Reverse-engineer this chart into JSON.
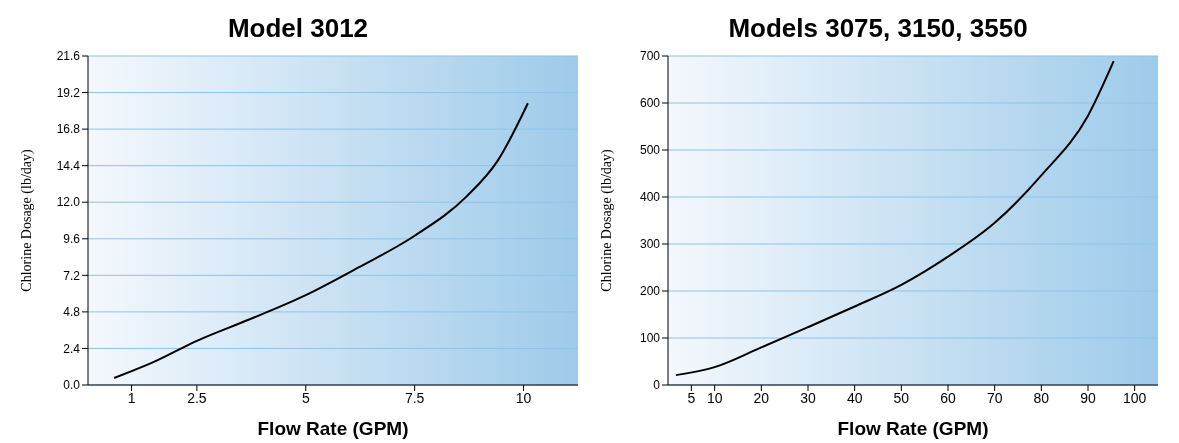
{
  "chart_data": [
    {
      "type": "line",
      "title": "Model 3012",
      "xlabel": "Flow Rate (GPM)",
      "ylabel": "Chlorine Dosage (lb/day)",
      "grid": "y",
      "marker": "none",
      "line_style": "solid",
      "xlim": [
        0,
        11.25
      ],
      "xticks": [
        1,
        2.5,
        5,
        7.5,
        10
      ],
      "ylim": [
        0,
        21.6
      ],
      "yticks": [
        {
          "value": 0,
          "label": "0.0"
        },
        2.4,
        4.8,
        7.2,
        9.6,
        {
          "value": 12,
          "label": "12.0"
        },
        14.4,
        16.8,
        19.2,
        21.6
      ],
      "series": [
        {
          "color": "#000000",
          "x": [
            0.6,
            1.5,
            2.5,
            3.7,
            5,
            6.2,
            7.5,
            8.7,
            9.4,
            10.1
          ],
          "values": [
            0.46,
            1.5,
            2.9,
            4.3,
            5.9,
            7.7,
            9.8,
            12.4,
            14.7,
            18.5
          ]
        }
      ]
    },
    {
      "type": "line",
      "title": "Models 3075, 3150, 3550",
      "xlabel": "Flow Rate (GPM)",
      "ylabel": "Chlorine Dosage (lb/day)",
      "grid": "y",
      "marker": "none",
      "line_style": "solid",
      "xlim": [
        0,
        105
      ],
      "xticks": [
        5,
        10,
        20,
        30,
        40,
        50,
        60,
        70,
        80,
        90,
        100
      ],
      "ylim": [
        0,
        700
      ],
      "yticks": [
        0,
        100,
        200,
        300,
        400,
        500,
        600,
        700
      ],
      "series": [
        {
          "color": "#000000",
          "x": [
            1.7,
            10,
            20,
            30,
            40,
            50,
            60,
            70,
            80,
            90,
            95.5
          ],
          "values": [
            21,
            38,
            80,
            123,
            167,
            213,
            273,
            345,
            446,
            573,
            689
          ]
        }
      ]
    }
  ]
}
